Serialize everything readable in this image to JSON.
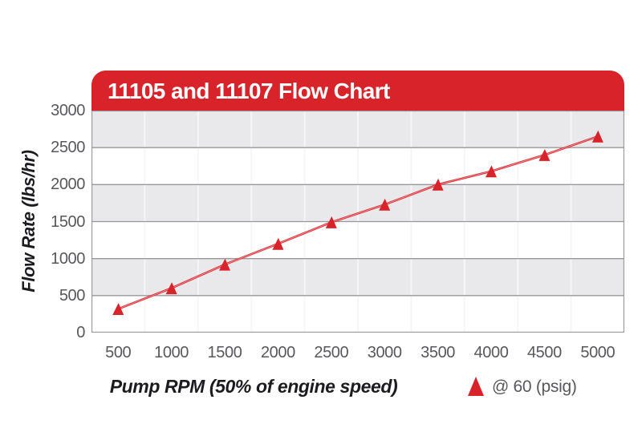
{
  "colors": {
    "accent_red": "#d8232a",
    "band_gray": "#e9e9eb",
    "band_white": "#ffffff",
    "h_gridline": "#98989b",
    "v_gridline": "#f6f6f8",
    "plot_border": "#9b9b9e",
    "tick_text": "#58585b",
    "axis_title_text": "#1c1c1e",
    "header_title_text": "#ffffff"
  },
  "chart_data": {
    "type": "line",
    "title": "11105 and 11107 Flow Chart",
    "xlabel": "Pump RPM (50% of engine speed)",
    "ylabel": "Flow Rate (lbs/hr)",
    "x": [
      500,
      1000,
      1500,
      2000,
      2500,
      3000,
      3500,
      4000,
      4500,
      5000
    ],
    "x_ticks": [
      "500",
      "1000",
      "1500",
      "2000",
      "2500",
      "3000",
      "3500",
      "4000",
      "4500",
      "5000"
    ],
    "y_ticks": [
      "0",
      "500",
      "1000",
      "1500",
      "2000",
      "2500",
      "3000"
    ],
    "ylim": [
      0,
      3000
    ],
    "xlim_categories": 10,
    "grid": "horizontal-bands",
    "band_pattern": [
      "gray",
      "white",
      "gray",
      "white",
      "gray",
      "white"
    ],
    "legend_position": "bottom-right",
    "series": [
      {
        "name": "@ 60 (psig)",
        "marker": "triangle",
        "color": "#d8232a",
        "values": [
          320,
          600,
          920,
          1200,
          1490,
          1730,
          2000,
          2180,
          2400,
          2650
        ]
      }
    ]
  }
}
